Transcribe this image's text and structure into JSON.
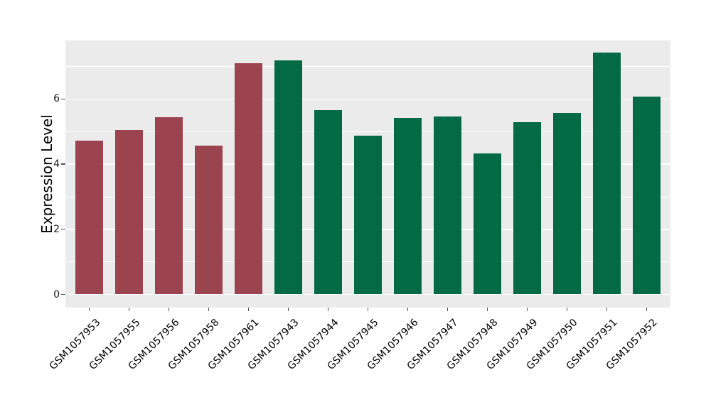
{
  "figure": {
    "background": "#FFFFFF",
    "panel_background": "#EBEBEB",
    "grid_color": "#FFFFFF",
    "tick_color": "#555555",
    "text_color": "#000000"
  },
  "chart_data": {
    "type": "bar",
    "title": "",
    "xlabel": "",
    "ylabel": "Expression Level",
    "categories": [
      "GSM1057953",
      "GSM1057955",
      "GSM1057956",
      "GSM1057958",
      "GSM1057961",
      "GSM1057943",
      "GSM1057944",
      "GSM1057945",
      "GSM1057946",
      "GSM1057947",
      "GSM1057948",
      "GSM1057949",
      "GSM1057950",
      "GSM1057951",
      "GSM1057952"
    ],
    "values": [
      4.72,
      5.04,
      5.44,
      4.56,
      7.09,
      7.18,
      5.67,
      4.87,
      5.42,
      5.46,
      4.34,
      5.28,
      5.57,
      7.42,
      6.07
    ],
    "groups": [
      "red",
      "red",
      "red",
      "red",
      "red",
      "green",
      "green",
      "green",
      "green",
      "green",
      "green",
      "green",
      "green",
      "green",
      "green"
    ],
    "group_colors": {
      "red": "#9B4450",
      "green": "#036A46"
    },
    "yticks": [
      0,
      2,
      4,
      6
    ],
    "yticks_minor": [
      1,
      3,
      5,
      7
    ],
    "ylim": [
      0,
      7.8
    ],
    "grid": "on",
    "legend": "none",
    "bar_width_fraction": 0.7
  }
}
